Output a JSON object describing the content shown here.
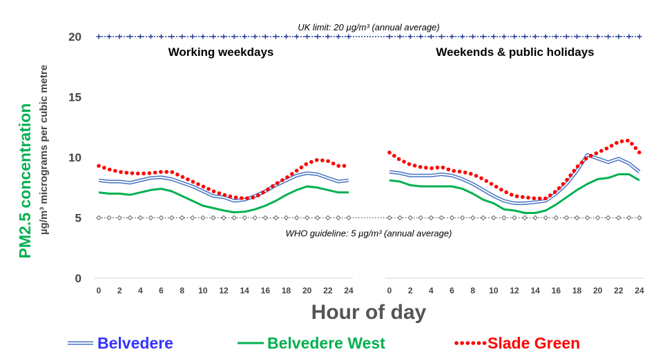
{
  "chart_data": {
    "type": "line",
    "ylabel": "PM2.5 concentration",
    "ylabel_sub": "µg/m³ micrograms per cubic metre",
    "xlabel": "Hour of day",
    "ylim": [
      0,
      22
    ],
    "yticks": [
      0,
      5,
      10,
      15,
      20
    ],
    "xticks": [
      0,
      2,
      4,
      6,
      8,
      10,
      12,
      14,
      16,
      18,
      20,
      22,
      24
    ],
    "hours": [
      0,
      1,
      2,
      3,
      4,
      5,
      6,
      7,
      8,
      9,
      10,
      11,
      12,
      13,
      14,
      15,
      16,
      17,
      18,
      19,
      20,
      21,
      22,
      23,
      24
    ],
    "reference_lines": [
      {
        "name": "UK limit",
        "value": 20,
        "label": "UK limit:  20 µg/m³ (annual average)"
      },
      {
        "name": "WHO guideline",
        "value": 5,
        "label": "WHO guideline:  5 µg/m³ (annual average)"
      }
    ],
    "panels": [
      {
        "title": "Working weekdays",
        "series": [
          {
            "name": "Belvedere",
            "color": "#4472c4",
            "values": [
              8.1,
              8.0,
              8.0,
              7.9,
              8.1,
              8.3,
              8.35,
              8.2,
              7.9,
              7.6,
              7.2,
              6.8,
              6.7,
              6.4,
              6.5,
              6.8,
              7.2,
              7.7,
              8.1,
              8.5,
              8.7,
              8.6,
              8.3,
              8.0,
              8.1
            ]
          },
          {
            "name": "Belvedere West",
            "color": "#00b050",
            "values": [
              7.1,
              7.0,
              7.0,
              6.9,
              7.1,
              7.3,
              7.4,
              7.2,
              6.8,
              6.4,
              6.0,
              5.8,
              5.6,
              5.45,
              5.5,
              5.7,
              6.0,
              6.4,
              6.9,
              7.3,
              7.6,
              7.5,
              7.3,
              7.1,
              7.1
            ]
          },
          {
            "name": "Slade Green",
            "color": "#ff0000",
            "values": [
              9.3,
              9.0,
              8.8,
              8.7,
              8.65,
              8.7,
              8.8,
              8.8,
              8.4,
              8.0,
              7.6,
              7.2,
              6.9,
              6.7,
              6.6,
              6.7,
              7.2,
              7.8,
              8.3,
              8.9,
              9.5,
              9.8,
              9.7,
              9.3,
              9.3
            ]
          }
        ]
      },
      {
        "title": "Weekends & public holidays",
        "series": [
          {
            "name": "Belvedere",
            "color": "#4472c4",
            "values": [
              8.8,
              8.7,
              8.5,
              8.5,
              8.5,
              8.6,
              8.5,
              8.2,
              7.8,
              7.3,
              6.8,
              6.4,
              6.2,
              6.2,
              6.3,
              6.4,
              7.0,
              7.8,
              8.9,
              10.2,
              9.9,
              9.6,
              9.9,
              9.5,
              8.8
            ]
          },
          {
            "name": "Belvedere West",
            "color": "#00b050",
            "values": [
              8.1,
              8.0,
              7.7,
              7.6,
              7.6,
              7.6,
              7.6,
              7.4,
              7.0,
              6.5,
              6.2,
              5.7,
              5.6,
              5.4,
              5.4,
              5.6,
              6.1,
              6.7,
              7.3,
              7.8,
              8.2,
              8.3,
              8.6,
              8.6,
              8.1
            ]
          },
          {
            "name": "Slade Green",
            "color": "#ff0000",
            "values": [
              10.4,
              9.8,
              9.4,
              9.2,
              9.1,
              9.2,
              8.9,
              8.8,
              8.6,
              8.2,
              7.7,
              7.2,
              6.8,
              6.7,
              6.6,
              6.6,
              7.2,
              8.1,
              9.2,
              10.0,
              10.4,
              10.8,
              11.3,
              11.4,
              10.4
            ]
          }
        ]
      }
    ],
    "legend": [
      {
        "name": "Belvedere",
        "color": "#3333ff",
        "style": "double-line"
      },
      {
        "name": "Belvedere West",
        "color": "#00b050",
        "style": "solid"
      },
      {
        "name": "Slade Green",
        "color": "#ff0000",
        "style": "dotted"
      }
    ]
  }
}
